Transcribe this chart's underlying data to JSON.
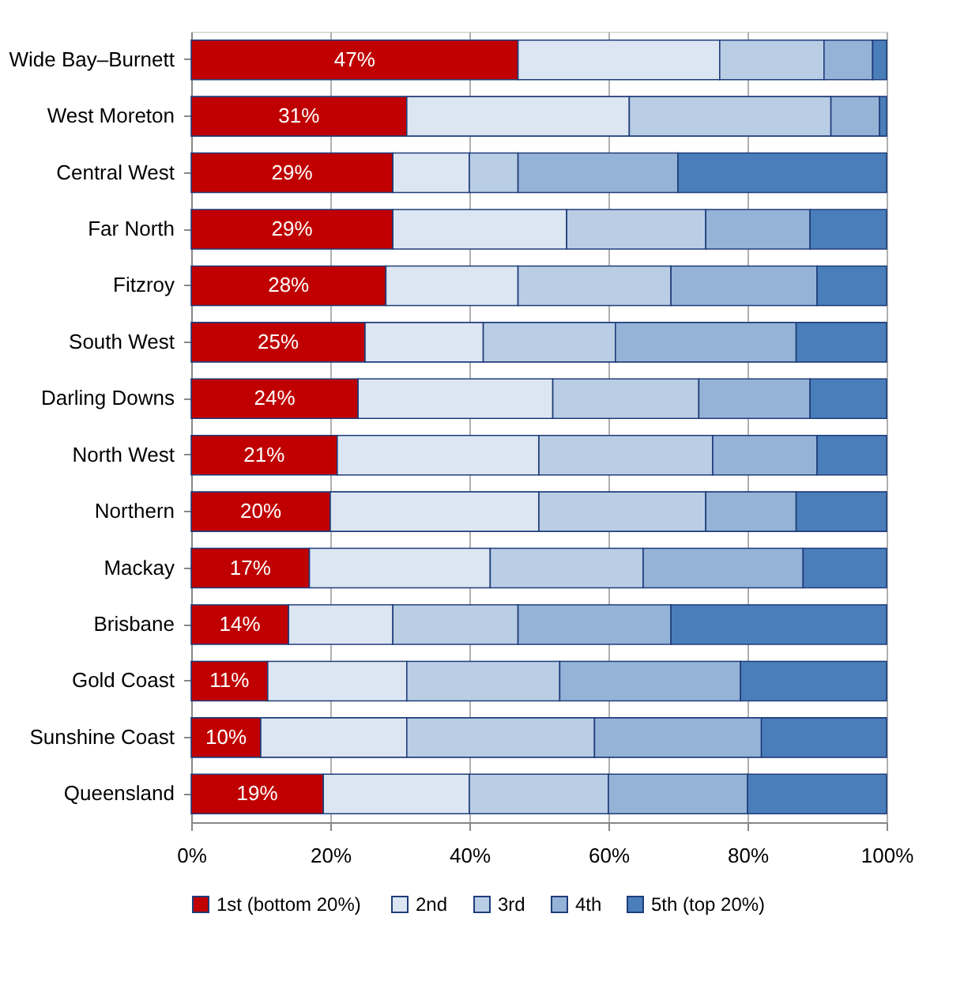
{
  "chart_data": {
    "type": "bar",
    "orientation": "horizontal",
    "stacked": true,
    "categories": [
      "Wide Bay–Burnett",
      "West Moreton",
      "Central West",
      "Far North",
      "Fitzroy",
      "South West",
      "Darling Downs",
      "North West",
      "Northern",
      "Mackay",
      "Brisbane",
      "Gold Coast",
      "Sunshine Coast",
      "Queensland"
    ],
    "series": [
      {
        "name": "1st  (bottom 20%)",
        "color": "#c00000",
        "values": [
          47,
          31,
          29,
          29,
          28,
          25,
          24,
          21,
          20,
          17,
          14,
          11,
          10,
          19
        ],
        "value_labels": [
          "47%",
          "31%",
          "29%",
          "29%",
          "28%",
          "25%",
          "24%",
          "21%",
          "20%",
          "17%",
          "14%",
          "11%",
          "10%",
          "19%"
        ]
      },
      {
        "name": "2nd",
        "color": "#dce6f2",
        "values": [
          29,
          32,
          11,
          25,
          19,
          17,
          28,
          29,
          30,
          26,
          15,
          20,
          21,
          21
        ]
      },
      {
        "name": "3rd",
        "color": "#b9cde5",
        "values": [
          15,
          29,
          7,
          20,
          22,
          19,
          21,
          25,
          24,
          22,
          18,
          22,
          27,
          20
        ]
      },
      {
        "name": "4th",
        "color": "#95b3d7",
        "values": [
          7,
          7,
          23,
          15,
          21,
          26,
          16,
          15,
          13,
          23,
          22,
          26,
          24,
          20
        ]
      },
      {
        "name": "5th  (top 20%)",
        "color": "#4a7ebb",
        "values": [
          2,
          1,
          30,
          11,
          10,
          13,
          11,
          10,
          13,
          12,
          31,
          21,
          18,
          20
        ]
      }
    ],
    "xlim": [
      0,
      100
    ],
    "xticks": [
      {
        "value": 0,
        "label": "0%"
      },
      {
        "value": 20,
        "label": "20%"
      },
      {
        "value": 40,
        "label": "40%"
      },
      {
        "value": 60,
        "label": "60%"
      },
      {
        "value": 80,
        "label": "80%"
      },
      {
        "value": 100,
        "label": "100%"
      }
    ],
    "grid": "x",
    "legend": "bottom"
  }
}
